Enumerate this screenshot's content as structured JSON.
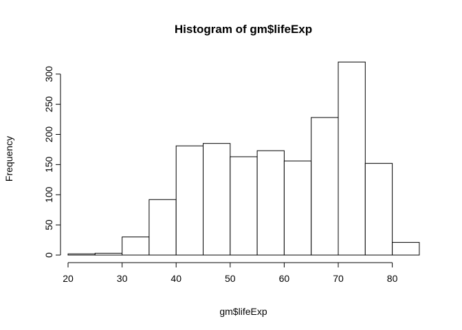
{
  "chart_data": {
    "type": "bar",
    "title": "Histogram of gm$lifeExp",
    "xlabel": "gm$lifeExp",
    "ylabel": "Frequency",
    "bins": [
      {
        "x0": 20,
        "x1": 25,
        "count": 2
      },
      {
        "x0": 25,
        "x1": 30,
        "count": 3
      },
      {
        "x0": 30,
        "x1": 35,
        "count": 30
      },
      {
        "x0": 35,
        "x1": 40,
        "count": 92
      },
      {
        "x0": 40,
        "x1": 45,
        "count": 181
      },
      {
        "x0": 45,
        "x1": 50,
        "count": 185
      },
      {
        "x0": 50,
        "x1": 55,
        "count": 163
      },
      {
        "x0": 55,
        "x1": 60,
        "count": 173
      },
      {
        "x0": 60,
        "x1": 65,
        "count": 156
      },
      {
        "x0": 65,
        "x1": 70,
        "count": 228
      },
      {
        "x0": 70,
        "x1": 75,
        "count": 320
      },
      {
        "x0": 75,
        "x1": 80,
        "count": 152
      },
      {
        "x0": 80,
        "x1": 85,
        "count": 21
      }
    ],
    "x_ticks": [
      20,
      30,
      40,
      50,
      60,
      70,
      80
    ],
    "y_ticks": [
      0,
      50,
      100,
      150,
      200,
      250,
      300
    ],
    "xlim": [
      20,
      85
    ],
    "ylim": [
      0,
      320
    ],
    "bar_fill": "#ffffff",
    "bar_stroke": "#000000",
    "grid": false,
    "legend": "none"
  }
}
